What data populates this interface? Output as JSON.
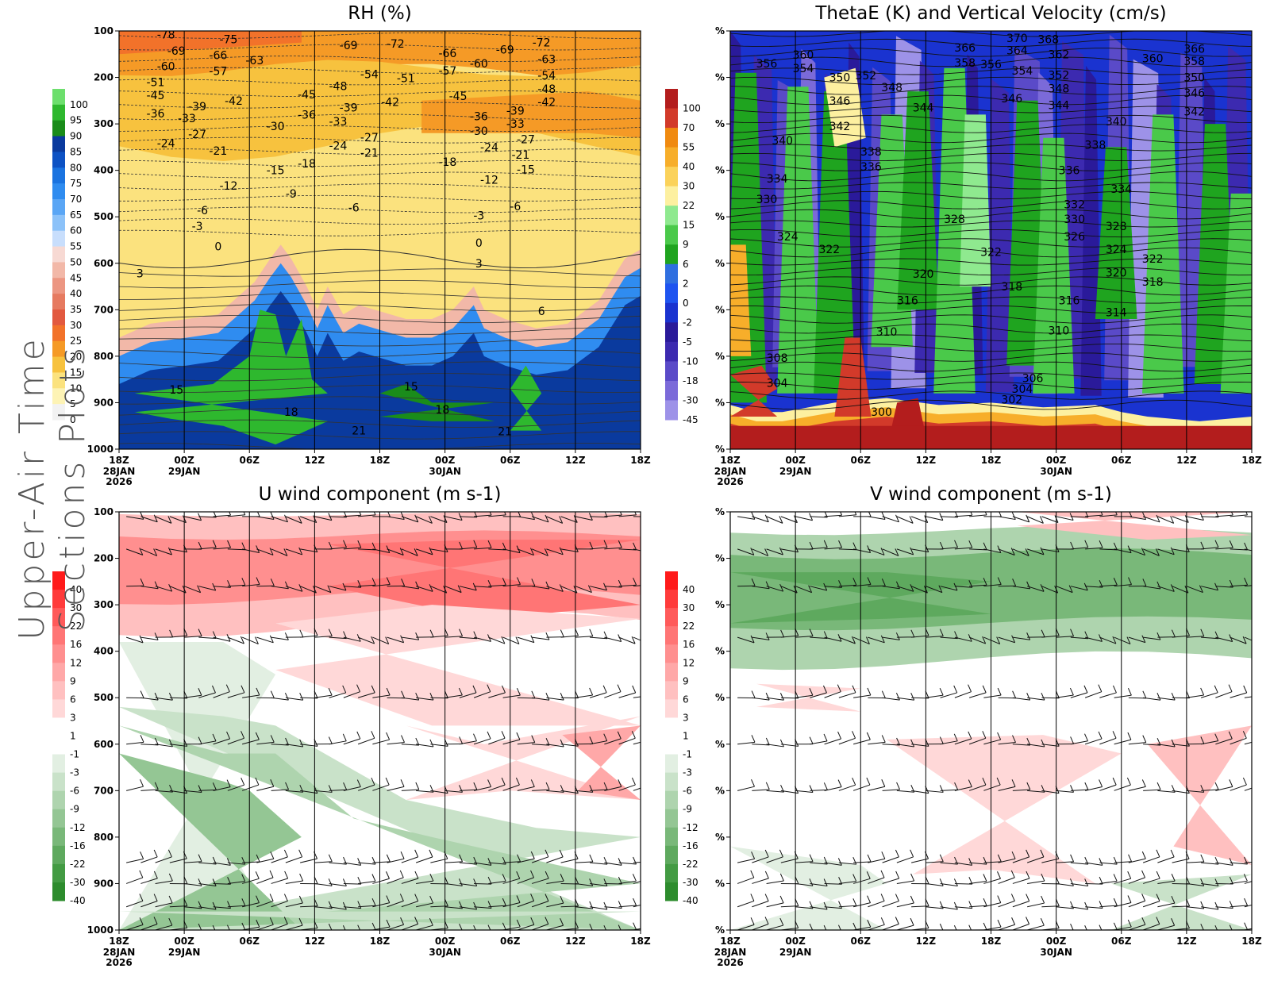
{
  "figure_title": "Upper-Air Time Sections Plots",
  "time_axis": {
    "labels": [
      "18Z",
      "00Z",
      "06Z",
      "12Z",
      "18Z",
      "00Z",
      "06Z",
      "12Z",
      "18Z"
    ],
    "date_labels": [
      {
        "index": 0,
        "text": "28JAN"
      },
      {
        "index": 1,
        "text": "29JAN"
      },
      {
        "index": 5,
        "text": "30JAN"
      }
    ],
    "year_label": {
      "index": 0,
      "text": "2026"
    }
  },
  "chart_data": [
    {
      "type": "heatmap",
      "id": "rh",
      "title": "RH (%)",
      "y_axis": {
        "labels": [
          "100",
          "200",
          "300",
          "400",
          "500",
          "600",
          "700",
          "800",
          "900",
          "1000"
        ]
      },
      "colorbar": {
        "levels": [
          "100",
          "95",
          "90",
          "85",
          "80",
          "75",
          "70",
          "65",
          "60",
          "55",
          "50",
          "45",
          "40",
          "35",
          "30",
          "25",
          "20",
          "15",
          "10",
          "5",
          "0"
        ],
        "colors": [
          "#6ddf6d",
          "#2eb82e",
          "#1a8c1a",
          "#0a3a9e",
          "#0d52c4",
          "#1a73e0",
          "#2f8cf0",
          "#5aa6f5",
          "#8cc2f9",
          "#c8defc",
          "#f7d9d3",
          "#f2b8a8",
          "#ec9682",
          "#e67a60",
          "#e2593f",
          "#f2722a",
          "#f59a26",
          "#f7c23e",
          "#fbe27e",
          "#fdf3b5",
          "#f2f2f2"
        ]
      },
      "temperature_contours": [
        {
          "value": "-78",
          "t": 0.09,
          "p": 108
        },
        {
          "value": "-75",
          "t": 0.21,
          "p": 118
        },
        {
          "value": "-69",
          "t": 0.11,
          "p": 143
        },
        {
          "value": "-66",
          "t": 0.19,
          "p": 152
        },
        {
          "value": "-63",
          "t": 0.26,
          "p": 163
        },
        {
          "value": "-60",
          "t": 0.09,
          "p": 176
        },
        {
          "value": "-57",
          "t": 0.19,
          "p": 186
        },
        {
          "value": "-51",
          "t": 0.07,
          "p": 210
        },
        {
          "value": "-45",
          "t": 0.07,
          "p": 238
        },
        {
          "value": "-42",
          "t": 0.22,
          "p": 250
        },
        {
          "value": "-39",
          "t": 0.15,
          "p": 262
        },
        {
          "value": "-36",
          "t": 0.07,
          "p": 278
        },
        {
          "value": "-33",
          "t": 0.13,
          "p": 288
        },
        {
          "value": "-30",
          "t": 0.3,
          "p": 305
        },
        {
          "value": "-27",
          "t": 0.15,
          "p": 322
        },
        {
          "value": "-24",
          "t": 0.09,
          "p": 342
        },
        {
          "value": "-21",
          "t": 0.19,
          "p": 358
        },
        {
          "value": "-18",
          "t": 0.36,
          "p": 385
        },
        {
          "value": "-15",
          "t": 0.3,
          "p": 400
        },
        {
          "value": "-12",
          "t": 0.21,
          "p": 433
        },
        {
          "value": "-9",
          "t": 0.33,
          "p": 450
        },
        {
          "value": "-6",
          "t": 0.16,
          "p": 486
        },
        {
          "value": "-3",
          "t": 0.15,
          "p": 520
        },
        {
          "value": "0",
          "t": 0.19,
          "p": 564
        },
        {
          "value": "3",
          "t": 0.04,
          "p": 622
        },
        {
          "value": "-69",
          "t": 0.44,
          "p": 131
        },
        {
          "value": "-72",
          "t": 0.53,
          "p": 127
        },
        {
          "value": "-54",
          "t": 0.48,
          "p": 193
        },
        {
          "value": "-51",
          "t": 0.55,
          "p": 202
        },
        {
          "value": "-48",
          "t": 0.42,
          "p": 219
        },
        {
          "value": "-45",
          "t": 0.36,
          "p": 237
        },
        {
          "value": "-42",
          "t": 0.52,
          "p": 253
        },
        {
          "value": "-39",
          "t": 0.44,
          "p": 265
        },
        {
          "value": "-36",
          "t": 0.36,
          "p": 280
        },
        {
          "value": "-33",
          "t": 0.42,
          "p": 295
        },
        {
          "value": "-27",
          "t": 0.48,
          "p": 329
        },
        {
          "value": "-24",
          "t": 0.42,
          "p": 347
        },
        {
          "value": "-21",
          "t": 0.48,
          "p": 362
        },
        {
          "value": "-6",
          "t": 0.45,
          "p": 480
        },
        {
          "value": "-66",
          "t": 0.63,
          "p": 148
        },
        {
          "value": "-69",
          "t": 0.74,
          "p": 140
        },
        {
          "value": "-72",
          "t": 0.81,
          "p": 125
        },
        {
          "value": "-60",
          "t": 0.69,
          "p": 170
        },
        {
          "value": "-57",
          "t": 0.63,
          "p": 185
        },
        {
          "value": "-63",
          "t": 0.82,
          "p": 161
        },
        {
          "value": "-54",
          "t": 0.82,
          "p": 196
        },
        {
          "value": "-48",
          "t": 0.82,
          "p": 225
        },
        {
          "value": "-42",
          "t": 0.82,
          "p": 253
        },
        {
          "value": "-45",
          "t": 0.65,
          "p": 240
        },
        {
          "value": "-39",
          "t": 0.76,
          "p": 272
        },
        {
          "value": "-36",
          "t": 0.69,
          "p": 284
        },
        {
          "value": "-33",
          "t": 0.76,
          "p": 300
        },
        {
          "value": "-30",
          "t": 0.69,
          "p": 315
        },
        {
          "value": "-27",
          "t": 0.78,
          "p": 333
        },
        {
          "value": "-24",
          "t": 0.71,
          "p": 350
        },
        {
          "value": "-21",
          "t": 0.77,
          "p": 366
        },
        {
          "value": "-18",
          "t": 0.63,
          "p": 382
        },
        {
          "value": "-15",
          "t": 0.78,
          "p": 398
        },
        {
          "value": "-12",
          "t": 0.71,
          "p": 420
        },
        {
          "value": "-6",
          "t": 0.76,
          "p": 477
        },
        {
          "value": "-3",
          "t": 0.69,
          "p": 497
        },
        {
          "value": "0",
          "t": 0.69,
          "p": 556
        },
        {
          "value": "3",
          "t": 0.69,
          "p": 600
        },
        {
          "value": "6",
          "t": 0.81,
          "p": 703
        },
        {
          "value": "15",
          "t": 0.11,
          "p": 872
        },
        {
          "value": "18",
          "t": 0.33,
          "p": 920
        },
        {
          "value": "21",
          "t": 0.46,
          "p": 960
        },
        {
          "value": "15",
          "t": 0.56,
          "p": 865
        },
        {
          "value": "18",
          "t": 0.62,
          "p": 915
        },
        {
          "value": "21",
          "t": 0.74,
          "p": 962
        }
      ]
    },
    {
      "type": "heatmap",
      "id": "thetae",
      "title": "ThetaE (K) and Vertical Velocity (cm/s)",
      "y_axis": {
        "labels": [
          "%",
          "%",
          "%",
          "%",
          "%",
          "%",
          "%",
          "%",
          "%",
          "%"
        ]
      },
      "colorbar": {
        "levels": [
          "100",
          "70",
          "55",
          "40",
          "30",
          "22",
          "15",
          "9",
          "6",
          "2",
          "0",
          "-2",
          "-5",
          "-10",
          "-18",
          "-30",
          "-45"
        ],
        "colors": [
          "#b31d1d",
          "#d23a2a",
          "#f08a10",
          "#f7ae2a",
          "#fbd25a",
          "#fdf0a0",
          "#8fe98f",
          "#4ac94a",
          "#1fa41f",
          "#2f6fe0",
          "#1e54f0",
          "#1a33d0",
          "#2a1a9a",
          "#3c2ab0",
          "#5a4ac8",
          "#7b6ad9",
          "#9d92e8"
        ]
      },
      "thetae_contours": [
        {
          "value": "370",
          "t": 0.55,
          "p": 115
        },
        {
          "value": "368",
          "t": 0.61,
          "p": 118
        },
        {
          "value": "366",
          "t": 0.45,
          "p": 136
        },
        {
          "value": "364",
          "t": 0.55,
          "p": 142
        },
        {
          "value": "362",
          "t": 0.63,
          "p": 150
        },
        {
          "value": "366",
          "t": 0.89,
          "p": 138
        },
        {
          "value": "360",
          "t": 0.14,
          "p": 151
        },
        {
          "value": "360",
          "t": 0.81,
          "p": 159
        },
        {
          "value": "358",
          "t": 0.45,
          "p": 168
        },
        {
          "value": "358",
          "t": 0.89,
          "p": 165
        },
        {
          "value": "356",
          "t": 0.07,
          "p": 170
        },
        {
          "value": "356",
          "t": 0.5,
          "p": 172
        },
        {
          "value": "354",
          "t": 0.14,
          "p": 180
        },
        {
          "value": "354",
          "t": 0.56,
          "p": 185
        },
        {
          "value": "352",
          "t": 0.63,
          "p": 195
        },
        {
          "value": "352",
          "t": 0.26,
          "p": 196
        },
        {
          "value": "350",
          "t": 0.21,
          "p": 200
        },
        {
          "value": "350",
          "t": 0.89,
          "p": 200
        },
        {
          "value": "348",
          "t": 0.31,
          "p": 221
        },
        {
          "value": "348",
          "t": 0.63,
          "p": 224
        },
        {
          "value": "346",
          "t": 0.21,
          "p": 250
        },
        {
          "value": "346",
          "t": 0.54,
          "p": 245
        },
        {
          "value": "346",
          "t": 0.89,
          "p": 233
        },
        {
          "value": "344",
          "t": 0.37,
          "p": 265
        },
        {
          "value": "344",
          "t": 0.63,
          "p": 260
        },
        {
          "value": "342",
          "t": 0.21,
          "p": 305
        },
        {
          "value": "342",
          "t": 0.89,
          "p": 273
        },
        {
          "value": "340",
          "t": 0.1,
          "p": 336
        },
        {
          "value": "340",
          "t": 0.74,
          "p": 295
        },
        {
          "value": "338",
          "t": 0.27,
          "p": 360
        },
        {
          "value": "338",
          "t": 0.7,
          "p": 345
        },
        {
          "value": "336",
          "t": 0.27,
          "p": 392
        },
        {
          "value": "336",
          "t": 0.65,
          "p": 400
        },
        {
          "value": "334",
          "t": 0.09,
          "p": 418
        },
        {
          "value": "334",
          "t": 0.75,
          "p": 440
        },
        {
          "value": "332",
          "t": 0.66,
          "p": 473
        },
        {
          "value": "330",
          "t": 0.07,
          "p": 462
        },
        {
          "value": "330",
          "t": 0.66,
          "p": 505
        },
        {
          "value": "328",
          "t": 0.43,
          "p": 505
        },
        {
          "value": "328",
          "t": 0.74,
          "p": 520
        },
        {
          "value": "326",
          "t": 0.66,
          "p": 542
        },
        {
          "value": "324",
          "t": 0.11,
          "p": 542
        },
        {
          "value": "324",
          "t": 0.74,
          "p": 570
        },
        {
          "value": "322",
          "t": 0.19,
          "p": 570
        },
        {
          "value": "322",
          "t": 0.5,
          "p": 576
        },
        {
          "value": "322",
          "t": 0.81,
          "p": 590
        },
        {
          "value": "320",
          "t": 0.37,
          "p": 623
        },
        {
          "value": "320",
          "t": 0.74,
          "p": 620
        },
        {
          "value": "318",
          "t": 0.54,
          "p": 650
        },
        {
          "value": "318",
          "t": 0.81,
          "p": 640
        },
        {
          "value": "316",
          "t": 0.34,
          "p": 680
        },
        {
          "value": "316",
          "t": 0.65,
          "p": 680
        },
        {
          "value": "314",
          "t": 0.74,
          "p": 705
        },
        {
          "value": "310",
          "t": 0.3,
          "p": 747
        },
        {
          "value": "310",
          "t": 0.63,
          "p": 745
        },
        {
          "value": "308",
          "t": 0.09,
          "p": 804
        },
        {
          "value": "306",
          "t": 0.58,
          "p": 847
        },
        {
          "value": "304",
          "t": 0.09,
          "p": 857
        },
        {
          "value": "304",
          "t": 0.56,
          "p": 870
        },
        {
          "value": "302",
          "t": 0.54,
          "p": 893
        },
        {
          "value": "300",
          "t": 0.29,
          "p": 920
        }
      ]
    },
    {
      "type": "heatmap",
      "id": "u",
      "title": "U wind component (m s-1)",
      "y_axis": {
        "labels": [
          "100",
          "200",
          "300",
          "400",
          "500",
          "600",
          "700",
          "800",
          "900",
          "1000"
        ]
      },
      "colorbar": {
        "levels": [
          "40",
          "30",
          "22",
          "16",
          "12",
          "9",
          "6",
          "3",
          "1",
          "-1",
          "-3",
          "-6",
          "-9",
          "-12",
          "-16",
          "-22",
          "-30",
          "-40"
        ],
        "colors": [
          "#ff1a1a",
          "#ff3b3b",
          "#ff5a5a",
          "#ff7575",
          "#ff8f8f",
          "#ffa8a8",
          "#ffc0c0",
          "#ffd8d8",
          "#ffffff",
          "#ffffff",
          "#e2efe2",
          "#c9e2c9",
          "#aed4ae",
          "#94c694",
          "#79b879",
          "#5ea95e",
          "#439b43",
          "#2d8c2d"
        ]
      }
    },
    {
      "type": "heatmap",
      "id": "v",
      "title": "V wind component (m s-1)",
      "y_axis": {
        "labels": [
          "%",
          "%",
          "%",
          "%",
          "%",
          "%",
          "%",
          "%",
          "%",
          "%"
        ]
      },
      "colorbar": {
        "levels": [
          "40",
          "30",
          "22",
          "16",
          "12",
          "9",
          "6",
          "3",
          "1",
          "-1",
          "-3",
          "-6",
          "-9",
          "-12",
          "-16",
          "-22",
          "-30",
          "-40"
        ],
        "colors": [
          "#ff1a1a",
          "#ff3b3b",
          "#ff5a5a",
          "#ff7575",
          "#ff8f8f",
          "#ffa8a8",
          "#ffc0c0",
          "#ffd8d8",
          "#ffffff",
          "#ffffff",
          "#e2efe2",
          "#c9e2c9",
          "#aed4ae",
          "#94c694",
          "#79b879",
          "#5ea95e",
          "#439b43",
          "#2d8c2d"
        ]
      }
    }
  ]
}
